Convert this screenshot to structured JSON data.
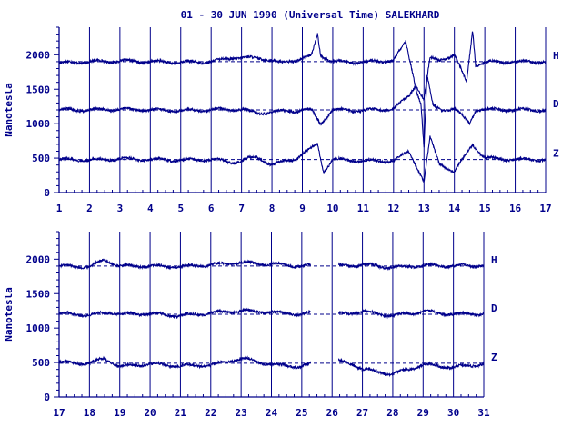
{
  "title": "01 - 30 JUN 1990 (Universal Time) SALEKHARD",
  "colors": {
    "ink": "#00008b",
    "background": "#ffffff"
  },
  "chart_data": [
    {
      "type": "line",
      "panel": "top",
      "ylabel": "Nanotesla",
      "ylim": [
        0,
        2400
      ],
      "yticks": [
        "0",
        "500",
        "1000",
        "1500",
        "2000"
      ],
      "xlim": [
        1,
        17
      ],
      "xticks": [
        "1",
        "2",
        "3",
        "4",
        "5",
        "6",
        "7",
        "8",
        "9",
        "10",
        "11",
        "12",
        "13",
        "14",
        "15",
        "16",
        "17"
      ],
      "grid": "vertical lines at day boundaries",
      "series": [
        {
          "name": "H",
          "baseline": 1900,
          "knots_x": [
            1,
            2,
            3,
            4,
            5,
            6,
            6.7,
            7.7,
            8.3,
            9.3,
            9.5,
            9.6,
            10,
            11,
            12,
            12.4,
            12.7,
            13,
            13.2,
            13.5,
            14,
            14.4,
            14.6,
            14.7,
            15,
            16,
            17
          ],
          "knots_y": [
            1880,
            1900,
            1910,
            1900,
            1890,
            1900,
            1960,
            1950,
            1880,
            1980,
            2300,
            2000,
            1900,
            1890,
            1920,
            2180,
            1600,
            1350,
            1950,
            1920,
            2000,
            1600,
            2360,
            1850,
            1890,
            1900,
            1900
          ]
        },
        {
          "name": "D",
          "baseline": 1200,
          "knots_x": [
            1,
            2,
            3,
            4,
            5,
            6,
            7,
            7.5,
            8.3,
            9.3,
            9.6,
            10,
            11,
            12,
            12.5,
            12.7,
            12.9,
            13,
            13.1,
            13.3,
            13.6,
            14,
            14.5,
            14.7,
            15,
            16,
            17
          ],
          "knots_y": [
            1200,
            1200,
            1210,
            1200,
            1190,
            1200,
            1210,
            1150,
            1180,
            1200,
            1000,
            1200,
            1190,
            1220,
            1400,
            1550,
            1300,
            650,
            1700,
            1250,
            1200,
            1220,
            1000,
            1200,
            1210,
            1200,
            1200
          ]
        },
        {
          "name": "Z",
          "baseline": 480,
          "knots_x": [
            1,
            2,
            3,
            4,
            5,
            6,
            6.8,
            7.5,
            8,
            8.8,
            9.5,
            9.7,
            10,
            11,
            12,
            12.5,
            12.8,
            13,
            13.2,
            13.5,
            14,
            14.6,
            15,
            16,
            17
          ],
          "knots_y": [
            480,
            470,
            490,
            480,
            470,
            480,
            440,
            520,
            400,
            500,
            700,
            300,
            480,
            460,
            460,
            600,
            350,
            150,
            800,
            420,
            300,
            700,
            500,
            480,
            480
          ]
        }
      ]
    },
    {
      "type": "line",
      "panel": "bottom",
      "ylabel": "Nanotesla",
      "ylim": [
        0,
        2400
      ],
      "yticks": [
        "0",
        "500",
        "1000",
        "1500",
        "2000"
      ],
      "xlim": [
        17,
        31
      ],
      "xticks": [
        "17",
        "18",
        "19",
        "20",
        "21",
        "22",
        "23",
        "24",
        "25",
        "26",
        "27",
        "28",
        "29",
        "30",
        "31"
      ],
      "grid": "vertical lines at day boundaries",
      "data_gap": [
        25.3,
        26.2
      ],
      "series": [
        {
          "name": "H",
          "baseline": 1900,
          "knots_x": [
            17,
            18,
            18.5,
            19,
            20,
            21,
            22,
            23,
            24,
            25,
            25.3,
            26.2,
            27,
            28,
            29,
            30,
            31
          ],
          "knots_y": [
            1900,
            1890,
            1990,
            1900,
            1900,
            1890,
            1920,
            1950,
            1930,
            1900,
            1910,
            1900,
            1920,
            1880,
            1910,
            1900,
            1910
          ]
        },
        {
          "name": "D",
          "baseline": 1200,
          "knots_x": [
            17,
            18,
            18.7,
            19,
            20,
            21,
            22,
            23,
            24,
            25,
            25.3,
            26.2,
            27,
            28,
            29,
            30,
            31
          ],
          "knots_y": [
            1210,
            1190,
            1230,
            1200,
            1210,
            1180,
            1220,
            1250,
            1230,
            1200,
            1220,
            1200,
            1240,
            1180,
            1240,
            1200,
            1210
          ]
        },
        {
          "name": "Z",
          "baseline": 490,
          "knots_x": [
            17,
            18,
            18.5,
            19,
            20,
            21,
            22,
            23,
            24,
            25,
            25.3,
            26.2,
            26.7,
            27,
            28,
            29,
            30,
            31
          ],
          "knots_y": [
            500,
            490,
            560,
            440,
            480,
            450,
            460,
            560,
            470,
            440,
            480,
            520,
            480,
            400,
            330,
            470,
            430,
            480
          ]
        }
      ]
    }
  ]
}
